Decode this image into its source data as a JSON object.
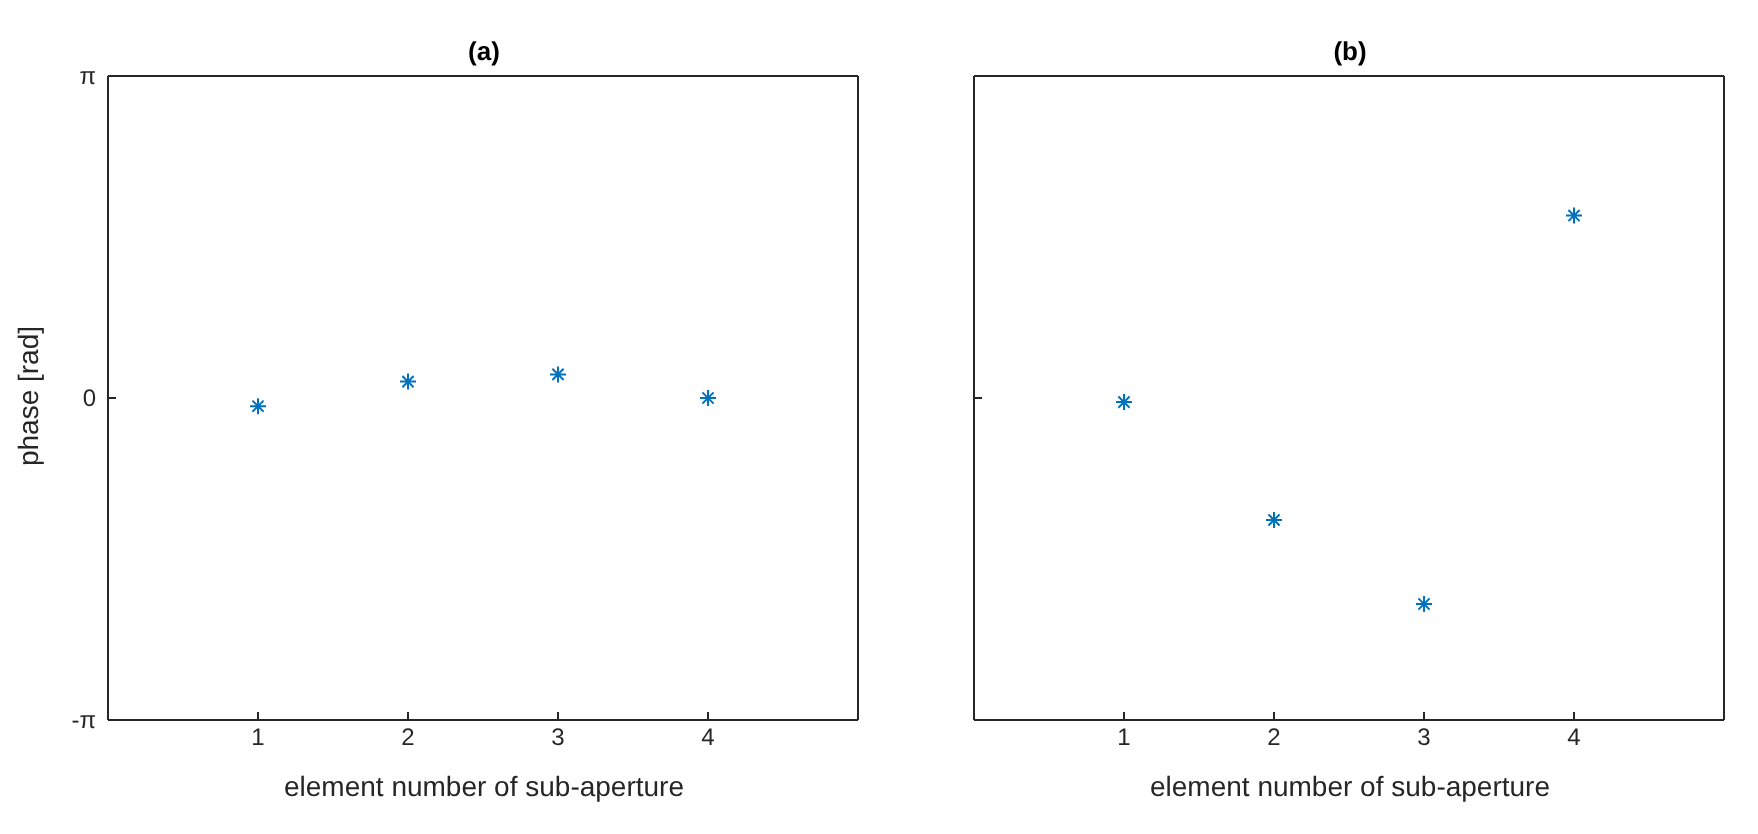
{
  "chart_data": [
    {
      "type": "scatter",
      "title": "(a)",
      "xlabel": "element number of sub-aperture",
      "ylabel": "phase [rad]",
      "x": [
        1,
        2,
        3,
        4
      ],
      "series": [
        {
          "color": "#0072bd",
          "values": [
            -0.08,
            0.16,
            0.23,
            0
          ]
        }
      ],
      "xlim": [
        0,
        5
      ],
      "xticks": [
        1,
        2,
        3,
        4
      ],
      "ylim": [
        -3.1416,
        3.1416
      ],
      "yticks": [
        {
          "value": -3.1416,
          "label": "-π"
        },
        0,
        {
          "value": 3.1416,
          "label": "π"
        }
      ],
      "marker": "cross",
      "grid": false
    },
    {
      "type": "scatter",
      "title": "(b)",
      "xlabel": "element number of sub-aperture",
      "x": [
        1,
        2,
        3,
        4
      ],
      "series": [
        {
          "color": "#0072bd",
          "values": [
            -0.04,
            -1.19,
            -2.01,
            1.78
          ]
        }
      ],
      "xlim": [
        0,
        5
      ],
      "xticks": [
        1,
        2,
        3,
        4
      ],
      "ylim": [
        -3.1416,
        3.1416
      ],
      "yticks": [
        {
          "value": -3.1416,
          "label": null
        },
        {
          "value": 0,
          "label": null
        },
        {
          "value": 3.1416,
          "label": null
        }
      ],
      "marker": "cross",
      "grid": false,
      "tick_labels": "x"
    }
  ]
}
